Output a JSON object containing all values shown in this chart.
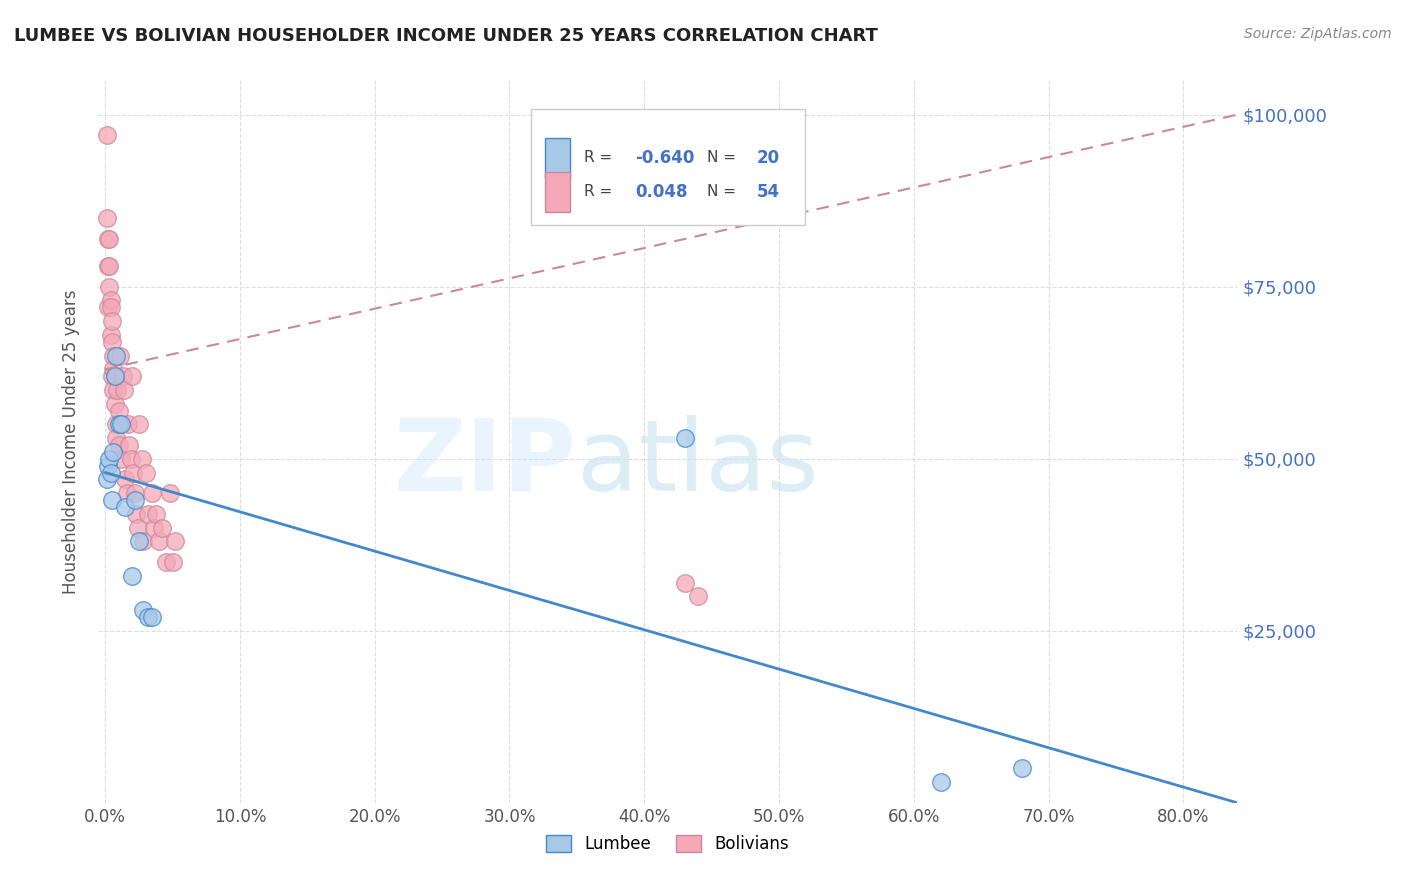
{
  "title": "LUMBEE VS BOLIVIAN HOUSEHOLDER INCOME UNDER 25 YEARS CORRELATION CHART",
  "source": "Source: ZipAtlas.com",
  "ylabel": "Householder Income Under 25 years",
  "xlabel_ticks": [
    "0.0%",
    "10.0%",
    "20.0%",
    "30.0%",
    "40.0%",
    "50.0%",
    "60.0%",
    "70.0%",
    "80.0%"
  ],
  "ytick_labels": [
    "$25,000",
    "$50,000",
    "$75,000",
    "$100,000"
  ],
  "ytick_values": [
    25000,
    50000,
    75000,
    100000
  ],
  "ylim": [
    0,
    105000
  ],
  "xlim": [
    -0.005,
    0.84
  ],
  "lumbee_color": "#a8c8e8",
  "bolivian_color": "#f4a8b8",
  "lumbee_line_color": "#4488cc",
  "bolivian_line_color": "#cc8899",
  "lumbee_R": -0.64,
  "lumbee_N": 20,
  "bolivian_R": 0.048,
  "bolivian_N": 54,
  "background_color": "#ffffff",
  "grid_color": "#dddddd",
  "lumbee_x": [
    0.001,
    0.002,
    0.003,
    0.004,
    0.005,
    0.006,
    0.007,
    0.008,
    0.01,
    0.012,
    0.015,
    0.02,
    0.022,
    0.025,
    0.028,
    0.032,
    0.035,
    0.43,
    0.62,
    0.68
  ],
  "lumbee_y": [
    47000,
    49000,
    50000,
    48000,
    44000,
    51000,
    62000,
    65000,
    55000,
    55000,
    43000,
    33000,
    44000,
    38000,
    28000,
    27000,
    27000,
    53000,
    3000,
    5000
  ],
  "bolivian_x": [
    0.001,
    0.001,
    0.002,
    0.002,
    0.002,
    0.003,
    0.003,
    0.003,
    0.004,
    0.004,
    0.004,
    0.005,
    0.005,
    0.005,
    0.006,
    0.006,
    0.006,
    0.007,
    0.007,
    0.008,
    0.008,
    0.009,
    0.01,
    0.01,
    0.011,
    0.012,
    0.013,
    0.014,
    0.015,
    0.016,
    0.017,
    0.018,
    0.019,
    0.02,
    0.021,
    0.022,
    0.023,
    0.024,
    0.025,
    0.027,
    0.028,
    0.03,
    0.032,
    0.035,
    0.036,
    0.038,
    0.04,
    0.042,
    0.045,
    0.048,
    0.05,
    0.052,
    0.43,
    0.44
  ],
  "bolivian_y": [
    97000,
    85000,
    82000,
    78000,
    72000,
    82000,
    78000,
    75000,
    73000,
    72000,
    68000,
    70000,
    67000,
    62000,
    65000,
    63000,
    60000,
    62000,
    58000,
    55000,
    53000,
    60000,
    57000,
    52000,
    65000,
    50000,
    62000,
    60000,
    47000,
    45000,
    55000,
    52000,
    50000,
    62000,
    48000,
    45000,
    42000,
    40000,
    55000,
    50000,
    38000,
    48000,
    42000,
    45000,
    40000,
    42000,
    38000,
    40000,
    35000,
    45000,
    35000,
    38000,
    32000,
    30000
  ],
  "lumbee_line_x0": 0.0,
  "lumbee_line_y0": 48000,
  "lumbee_line_x1": 0.84,
  "lumbee_line_y1": 0,
  "bolivian_line_x0": 0.0,
  "bolivian_line_y0": 63000,
  "bolivian_line_x1": 0.84,
  "bolivian_line_y1": 100000
}
